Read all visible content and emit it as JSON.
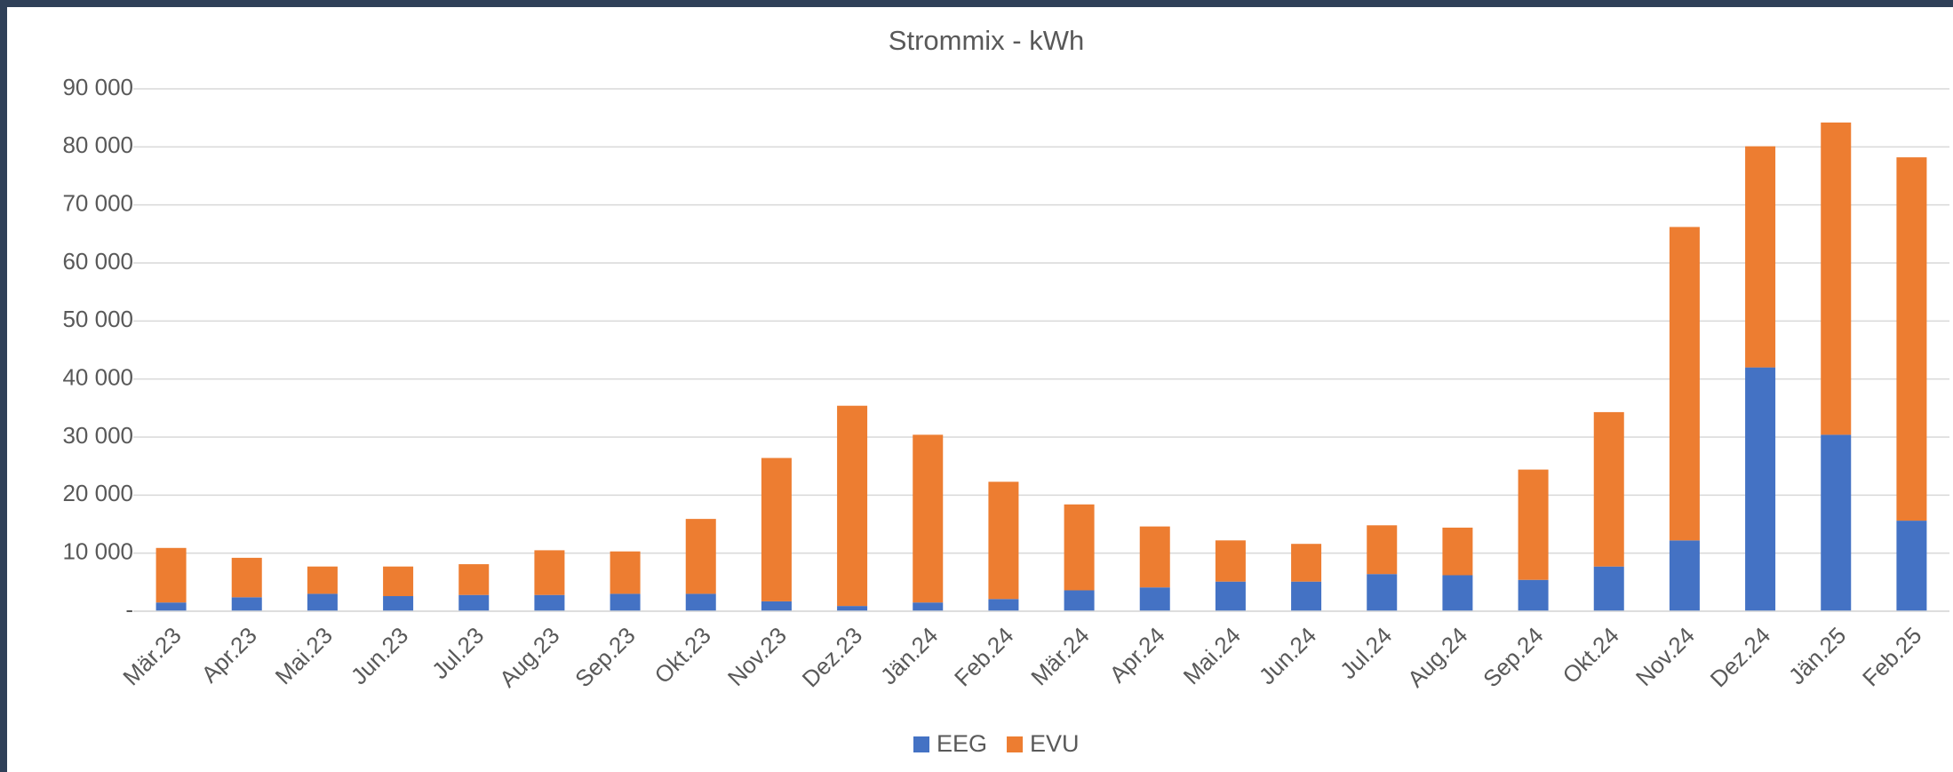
{
  "chart_data": {
    "type": "stacked_bar",
    "title": "Strommix - kWh",
    "categories": [
      "Mär.23",
      "Apr.23",
      "Mai.23",
      "Jun.23",
      "Jul.23",
      "Aug.23",
      "Sep.23",
      "Okt.23",
      "Nov.23",
      "Dez.23",
      "Jän.24",
      "Feb.24",
      "Mär.24",
      "Apr.24",
      "Mai.24",
      "Jun.24",
      "Jul.24",
      "Aug.24",
      "Sep.24",
      "Okt.24",
      "Nov.24",
      "Dez.24",
      "Jän.25",
      "Feb.25"
    ],
    "series": [
      {
        "name": "EEG",
        "color": "#4472c4",
        "values": [
          1500,
          2400,
          3000,
          2600,
          2800,
          2800,
          3000,
          3000,
          1700,
          900,
          1500,
          2100,
          3600,
          4100,
          5100,
          5100,
          6400,
          6200,
          5400,
          7700,
          12200,
          42000,
          30400,
          15600
        ]
      },
      {
        "name": "EVU",
        "color": "#ed7d31",
        "values": [
          9400,
          6800,
          4700,
          5100,
          5300,
          7700,
          7300,
          12900,
          24700,
          34500,
          28900,
          20200,
          14800,
          10500,
          7100,
          6500,
          8400,
          8200,
          19000,
          26600,
          54000,
          38100,
          53800,
          62600
        ]
      }
    ],
    "ylim": [
      0,
      90000
    ],
    "yticks": [
      {
        "value": 0,
        "label": "-"
      },
      {
        "value": 10000,
        "label": "10 000"
      },
      {
        "value": 20000,
        "label": "20 000"
      },
      {
        "value": 30000,
        "label": "30 000"
      },
      {
        "value": 40000,
        "label": "40 000"
      },
      {
        "value": 50000,
        "label": "50 000"
      },
      {
        "value": 60000,
        "label": "60 000"
      },
      {
        "value": 70000,
        "label": "70 000"
      },
      {
        "value": 80000,
        "label": "80 000"
      },
      {
        "value": 90000,
        "label": "90 000"
      }
    ],
    "grid": true,
    "legend": "bottom"
  }
}
